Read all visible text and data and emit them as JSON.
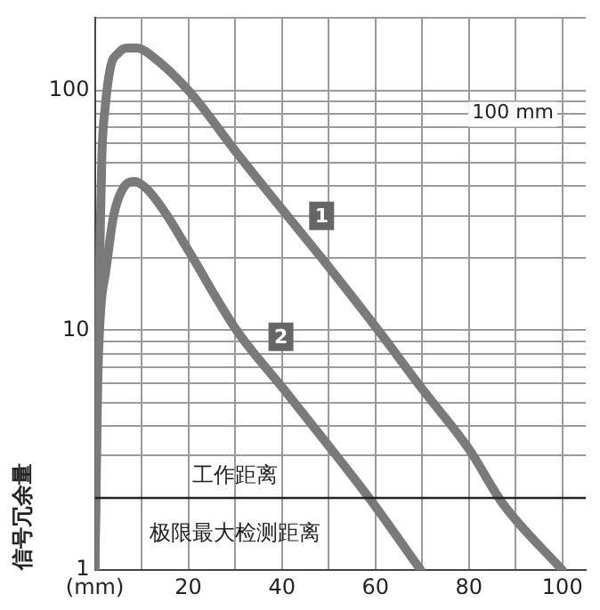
{
  "chart_data": {
    "type": "line",
    "ylabel": "信号冗余量",
    "annotations": [
      "100 mm",
      {
        "text": "1",
        "x": 48.5,
        "y": 30
      },
      {
        "text": "2",
        "x": 39.8,
        "y": 9.4
      },
      "极限最大检测距离"
    ],
    "ref_lines": [
      {
        "axis": "y",
        "value": 2,
        "label": "工作距离",
        "color": "#222222"
      }
    ],
    "series": [
      {
        "color": "#7a7a7a",
        "x": [
          0,
          0.3,
          0.6,
          1.1,
          1.5,
          2.2,
          3.3,
          5,
          7,
          9.1,
          12,
          20.4,
          30,
          40,
          48.5,
          60.6,
          70,
          80,
          87.2,
          100
        ],
        "values": [
          1,
          3,
          8,
          23,
          54,
          85,
          124,
          143,
          150,
          150,
          140,
          98,
          56,
          32,
          20,
          10,
          5.7,
          3.2,
          1.9,
          1
        ]
      },
      {
        "color": "#7a7a7a",
        "x": [
          0,
          0.3,
          0.6,
          1.1,
          1.5,
          2.2,
          4,
          6,
          8.4,
          11,
          15,
          20,
          30.3,
          40,
          50,
          59.5,
          69.7
        ],
        "values": [
          1,
          2.5,
          6,
          11,
          14,
          17,
          30,
          39,
          41.7,
          39,
          31,
          21.5,
          10,
          5.8,
          3.3,
          1.9,
          1
        ]
      }
    ],
    "xlim": [
      0,
      105
    ],
    "xticks": [
      {
        "value": 0,
        "label": "(mm)"
      },
      {
        "value": 10,
        "label": null
      },
      20,
      {
        "value": 30,
        "label": null
      },
      40,
      {
        "value": 50,
        "label": null
      },
      60,
      {
        "value": 70,
        "label": null
      },
      80,
      {
        "value": 90,
        "label": null
      },
      100
    ],
    "log": "y",
    "ylim": [
      1,
      200
    ],
    "yticks": [
      1,
      {
        "value": 2,
        "label": null
      },
      {
        "value": 3,
        "label": null
      },
      {
        "value": 4,
        "label": null
      },
      {
        "value": 5,
        "label": null
      },
      {
        "value": 6,
        "label": null
      },
      {
        "value": 7,
        "label": null
      },
      {
        "value": 8,
        "label": null
      },
      {
        "value": 9,
        "label": null
      },
      10,
      {
        "value": 20,
        "label": null
      },
      {
        "value": 30,
        "label": null
      },
      {
        "value": 40,
        "label": null
      },
      {
        "value": 50,
        "label": null
      },
      {
        "value": 60,
        "label": null
      },
      {
        "value": 70,
        "label": null
      },
      {
        "value": 80,
        "label": null
      },
      {
        "value": 90,
        "label": null
      },
      100,
      {
        "value": 200,
        "label": null
      }
    ],
    "grid": true,
    "legend": false,
    "marker": "none",
    "line_style": "solid"
  }
}
